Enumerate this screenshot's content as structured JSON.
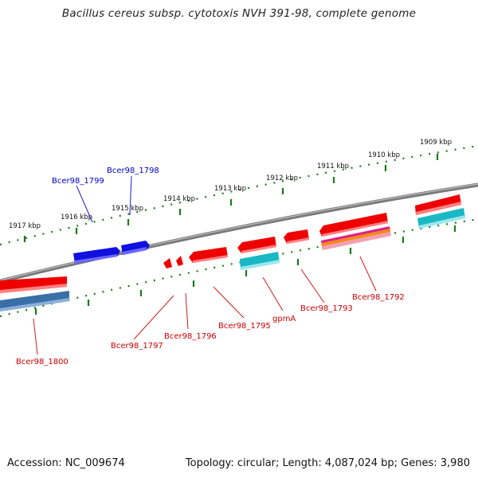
{
  "title": "Bacillus cereus subsp. cytotoxis NVH 391-98, complete genome",
  "footer": {
    "accession": "Accession: NC_009674",
    "summary": "Topology: circular; Length: 4,087,024 bp; Genes: 3,980"
  },
  "colors": {
    "backbone": "#8a8a8a",
    "tick": "#1a7a1a",
    "forward_feature": "#0000ee",
    "reverse_feature": "#ee0000",
    "forward_label": "#0000cc",
    "reverse_label": "#cc0000",
    "cds_secondary": "#1ab8c4",
    "blue_grey": "#4a7ab0",
    "rna_magenta": "#e0208c",
    "rna_orange": "#f08c1a"
  },
  "scale": {
    "tick_labels": [
      "1917 kbp",
      "1916 kbp",
      "1915 kbp",
      "1914 kbp",
      "1913 kbp",
      "1912 kbp",
      "1911 kbp",
      "1910 kbp",
      "1909 kbp"
    ]
  },
  "forward_labels": [
    "Bcer98_1799",
    "Bcer98_1798"
  ],
  "reverse_labels": [
    "Bcer98_1800",
    "Bcer98_1797",
    "Bcer98_1796",
    "Bcer98_1795",
    "gpmA",
    "Bcer98_1793",
    "Bcer98_1792"
  ]
}
